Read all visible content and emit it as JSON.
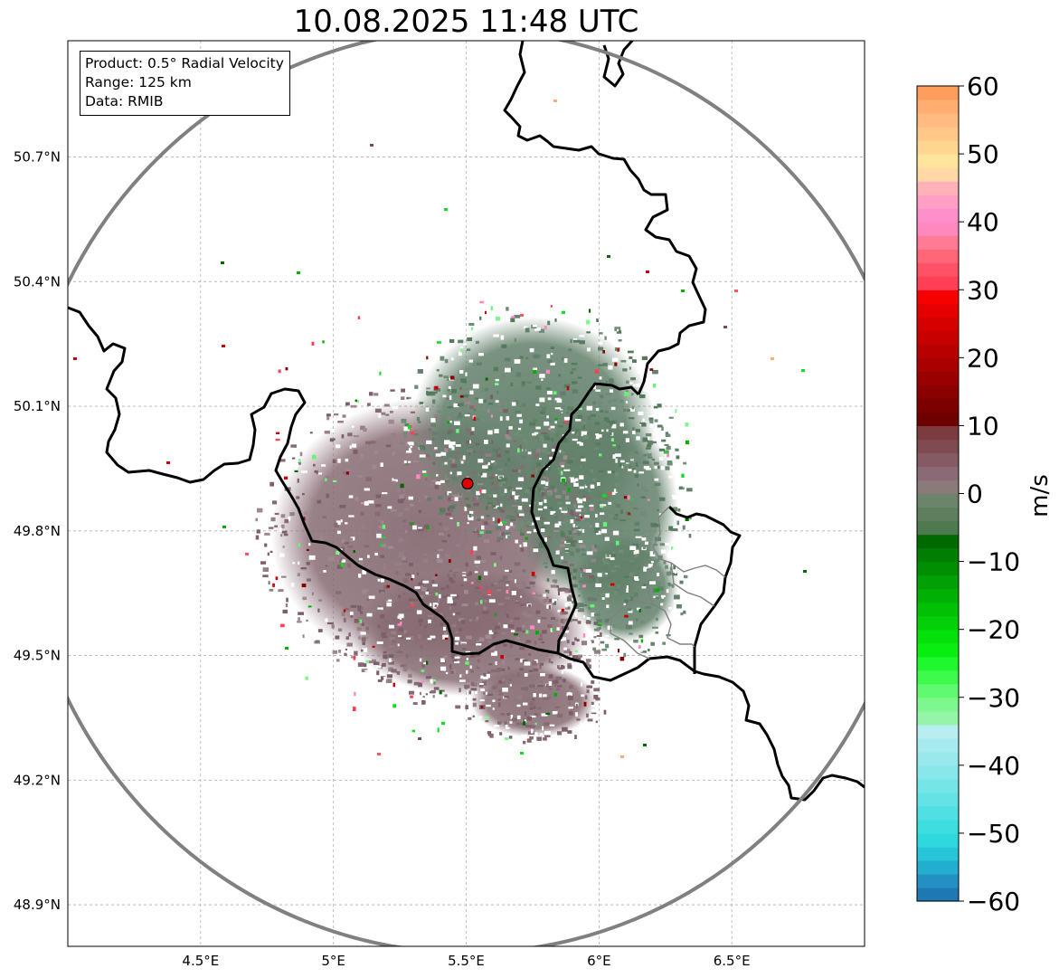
{
  "title": "10.08.2025 11:48 UTC",
  "info_box": {
    "line1": "Product: 0.5° Radial Velocity",
    "line2": "Range: 125 km",
    "line3": "Data: RMIB"
  },
  "map": {
    "projection": "PlateCarree",
    "lon_range": [
      4.0,
      7.0
    ],
    "lat_range": [
      48.8,
      50.98
    ],
    "radar_site": {
      "lon": 5.505,
      "lat": 49.914
    },
    "range_ring_km": 125,
    "lon_ticks": [
      {
        "value": 4.5,
        "label": "4.5°E"
      },
      {
        "value": 5.0,
        "label": "5°E"
      },
      {
        "value": 5.5,
        "label": "5.5°E"
      },
      {
        "value": 6.0,
        "label": "6°E"
      },
      {
        "value": 6.5,
        "label": "6.5°E"
      }
    ],
    "lat_ticks": [
      {
        "value": 50.7,
        "label": "50.7°N"
      },
      {
        "value": 50.4,
        "label": "50.4°N"
      },
      {
        "value": 50.1,
        "label": "50.1°N"
      },
      {
        "value": 49.8,
        "label": "49.8°N"
      },
      {
        "value": 49.5,
        "label": "49.5°N"
      },
      {
        "value": 49.2,
        "label": "49.2°N"
      },
      {
        "value": 48.9,
        "label": "48.9°N"
      }
    ]
  },
  "colorbar": {
    "label": "m/s",
    "vmin": -60,
    "vmax": 60,
    "ticks": [
      {
        "value": 60,
        "label": "60"
      },
      {
        "value": 50,
        "label": "50"
      },
      {
        "value": 40,
        "label": "40"
      },
      {
        "value": 30,
        "label": "30"
      },
      {
        "value": 20,
        "label": "20"
      },
      {
        "value": 10,
        "label": "10"
      },
      {
        "value": 0,
        "label": "0"
      },
      {
        "value": -10,
        "label": "−10"
      },
      {
        "value": -20,
        "label": "−20"
      },
      {
        "value": -30,
        "label": "−30"
      },
      {
        "value": -40,
        "label": "−40"
      },
      {
        "value": -50,
        "label": "−50"
      },
      {
        "value": -60,
        "label": "−60"
      }
    ],
    "bands": [
      {
        "from": -60,
        "to": -58,
        "color": "#1f77b4"
      },
      {
        "from": -58,
        "to": -56,
        "color": "#2390c4"
      },
      {
        "from": -56,
        "to": -54,
        "color": "#22aecf"
      },
      {
        "from": -54,
        "to": -52,
        "color": "#27c5d7"
      },
      {
        "from": -52,
        "to": -50,
        "color": "#2ed9dd"
      },
      {
        "from": -50,
        "to": -48,
        "color": "#3edde0"
      },
      {
        "from": -48,
        "to": -46,
        "color": "#50e0e3"
      },
      {
        "from": -46,
        "to": -44,
        "color": "#63e3e5"
      },
      {
        "from": -44,
        "to": -42,
        "color": "#75e5e7"
      },
      {
        "from": -42,
        "to": -40,
        "color": "#88e7ea"
      },
      {
        "from": -40,
        "to": -38,
        "color": "#99e9ec"
      },
      {
        "from": -38,
        "to": -36,
        "color": "#a8ebee"
      },
      {
        "from": -36,
        "to": -34,
        "color": "#b8eef0"
      },
      {
        "from": -34,
        "to": -32,
        "color": "#94f5a8"
      },
      {
        "from": -32,
        "to": -30,
        "color": "#7ef78e"
      },
      {
        "from": -30,
        "to": -28,
        "color": "#5ffa6f"
      },
      {
        "from": -28,
        "to": -26,
        "color": "#3efa4c"
      },
      {
        "from": -26,
        "to": -24,
        "color": "#1ef82c"
      },
      {
        "from": -24,
        "to": -22,
        "color": "#08ee10"
      },
      {
        "from": -22,
        "to": -20,
        "color": "#04e00a"
      },
      {
        "from": -20,
        "to": -18,
        "color": "#03d008"
      },
      {
        "from": -18,
        "to": -16,
        "color": "#02c006"
      },
      {
        "from": -16,
        "to": -14,
        "color": "#01b005"
      },
      {
        "from": -14,
        "to": -12,
        "color": "#01a004"
      },
      {
        "from": -12,
        "to": -10,
        "color": "#008f03"
      },
      {
        "from": -10,
        "to": -8,
        "color": "#007e02"
      },
      {
        "from": -8,
        "to": -6,
        "color": "#006a01"
      },
      {
        "from": -6,
        "to": -4,
        "color": "#4f7a4f"
      },
      {
        "from": -4,
        "to": -2,
        "color": "#5e7e5e"
      },
      {
        "from": -2,
        "to": 0,
        "color": "#6c836c"
      },
      {
        "from": 0,
        "to": 2,
        "color": "#8a7a7a"
      },
      {
        "from": 2,
        "to": 4,
        "color": "#8a6b75"
      },
      {
        "from": 4,
        "to": 6,
        "color": "#865a64"
      },
      {
        "from": 6,
        "to": 8,
        "color": "#7f4a50"
      },
      {
        "from": 8,
        "to": 10,
        "color": "#7a3c3f"
      },
      {
        "from": 10,
        "to": 12,
        "color": "#6e0000"
      },
      {
        "from": 12,
        "to": 14,
        "color": "#7c0000"
      },
      {
        "from": 14,
        "to": 16,
        "color": "#8b0000"
      },
      {
        "from": 16,
        "to": 18,
        "color": "#9a0000"
      },
      {
        "from": 18,
        "to": 20,
        "color": "#aa0000"
      },
      {
        "from": 20,
        "to": 22,
        "color": "#b80000"
      },
      {
        "from": 22,
        "to": 24,
        "color": "#c80000"
      },
      {
        "from": 24,
        "to": 26,
        "color": "#d60000"
      },
      {
        "from": 26,
        "to": 28,
        "color": "#e60000"
      },
      {
        "from": 28,
        "to": 30,
        "color": "#f70000"
      },
      {
        "from": 30,
        "to": 32,
        "color": "#ff3f56"
      },
      {
        "from": 32,
        "to": 34,
        "color": "#ff5266"
      },
      {
        "from": 34,
        "to": 36,
        "color": "#ff6778"
      },
      {
        "from": 36,
        "to": 38,
        "color": "#ff7a92"
      },
      {
        "from": 38,
        "to": 40,
        "color": "#ff88bf"
      },
      {
        "from": 40,
        "to": 42,
        "color": "#ff8fcb"
      },
      {
        "from": 42,
        "to": 44,
        "color": "#ff9fc6"
      },
      {
        "from": 44,
        "to": 46,
        "color": "#ffb3b8"
      },
      {
        "from": 46,
        "to": 48,
        "color": "#ffd8a6"
      },
      {
        "from": 48,
        "to": 50,
        "color": "#ffe49e"
      },
      {
        "from": 50,
        "to": 52,
        "color": "#ffd690"
      },
      {
        "from": 52,
        "to": 54,
        "color": "#ffc888"
      },
      {
        "from": 54,
        "to": 56,
        "color": "#ffbb80"
      },
      {
        "from": 56,
        "to": 58,
        "color": "#ffad70"
      },
      {
        "from": 58,
        "to": 60,
        "color": "#ff9d5c"
      }
    ]
  },
  "colors": {
    "outbound_echo": "#876b73",
    "inbound_echo": "#62806a",
    "border": "#000000",
    "range_ring": "#808080",
    "radar_marker": "#e00000"
  }
}
